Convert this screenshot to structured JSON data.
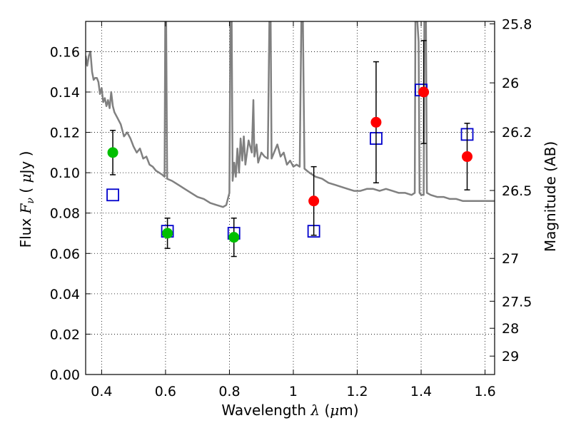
{
  "chart_data": {
    "type": "scatter",
    "title": "",
    "xlabel": {
      "prefix": "Wavelength  ",
      "symbol": "λ",
      "unit": " (",
      "mu": "μ",
      "unit_end": "m)"
    },
    "ylabel": {
      "prefix": "Flux  ",
      "symbol": "F",
      "sub": "ν",
      "unit_open": "  ( ",
      "mu": "μ",
      "unit_end": "Jy )"
    },
    "y2label": "Magnitude (AB)",
    "xlim": [
      0.35,
      1.63
    ],
    "ylim": [
      0.0,
      0.175
    ],
    "grid": true,
    "x_ticks": [
      {
        "v": 0.4,
        "label": "0.4"
      },
      {
        "v": 0.6,
        "label": "0.6"
      },
      {
        "v": 0.8,
        "label": "0.8"
      },
      {
        "v": 1.0,
        "label": "1"
      },
      {
        "v": 1.2,
        "label": "1.2"
      },
      {
        "v": 1.4,
        "label": "1.4"
      },
      {
        "v": 1.6,
        "label": "1.6"
      }
    ],
    "y_ticks": [
      {
        "v": 0.0,
        "label": "0.00"
      },
      {
        "v": 0.02,
        "label": "0.02"
      },
      {
        "v": 0.04,
        "label": "0.04"
      },
      {
        "v": 0.06,
        "label": "0.06"
      },
      {
        "v": 0.08,
        "label": "0.08"
      },
      {
        "v": 0.1,
        "label": "0.10"
      },
      {
        "v": 0.12,
        "label": "0.12"
      },
      {
        "v": 0.14,
        "label": "0.14"
      },
      {
        "v": 0.16,
        "label": "0.16"
      }
    ],
    "y2_ticks": [
      {
        "mag": 25.8,
        "label": "25.8"
      },
      {
        "mag": 26,
        "label": "26"
      },
      {
        "mag": 26.2,
        "label": "26.2"
      },
      {
        "mag": 26.5,
        "label": "26.5"
      },
      {
        "mag": 27,
        "label": "27"
      },
      {
        "mag": 27.5,
        "label": "27.5"
      },
      {
        "mag": 28,
        "label": "28"
      },
      {
        "mag": 29,
        "label": "29"
      }
    ],
    "series": [
      {
        "kind": "sed_model",
        "color": "#808080",
        "points": [
          [
            0.35,
            0.158
          ],
          [
            0.355,
            0.153
          ],
          [
            0.36,
            0.158
          ],
          [
            0.365,
            0.16
          ],
          [
            0.37,
            0.15
          ],
          [
            0.375,
            0.146
          ],
          [
            0.38,
            0.147
          ],
          [
            0.385,
            0.147
          ],
          [
            0.39,
            0.145
          ],
          [
            0.395,
            0.139
          ],
          [
            0.4,
            0.142
          ],
          [
            0.405,
            0.135
          ],
          [
            0.41,
            0.137
          ],
          [
            0.415,
            0.133
          ],
          [
            0.42,
            0.136
          ],
          [
            0.425,
            0.132
          ],
          [
            0.43,
            0.14
          ],
          [
            0.435,
            0.133
          ],
          [
            0.44,
            0.13
          ],
          [
            0.45,
            0.127
          ],
          [
            0.46,
            0.124
          ],
          [
            0.47,
            0.118
          ],
          [
            0.48,
            0.12
          ],
          [
            0.49,
            0.117
          ],
          [
            0.5,
            0.113
          ],
          [
            0.51,
            0.11
          ],
          [
            0.52,
            0.112
          ],
          [
            0.53,
            0.107
          ],
          [
            0.54,
            0.108
          ],
          [
            0.55,
            0.104
          ],
          [
            0.56,
            0.103
          ],
          [
            0.57,
            0.101
          ],
          [
            0.58,
            0.1
          ],
          [
            0.59,
            0.099
          ],
          [
            0.597,
            0.098
          ],
          [
            0.599,
            0.175
          ],
          [
            0.602,
            0.175
          ],
          [
            0.605,
            0.097
          ],
          [
            0.62,
            0.096
          ],
          [
            0.64,
            0.094
          ],
          [
            0.66,
            0.092
          ],
          [
            0.68,
            0.09
          ],
          [
            0.7,
            0.088
          ],
          [
            0.72,
            0.087
          ],
          [
            0.74,
            0.085
          ],
          [
            0.76,
            0.084
          ],
          [
            0.78,
            0.083
          ],
          [
            0.79,
            0.084
          ],
          [
            0.8,
            0.09
          ],
          [
            0.803,
            0.175
          ],
          [
            0.807,
            0.175
          ],
          [
            0.81,
            0.096
          ],
          [
            0.815,
            0.105
          ],
          [
            0.82,
            0.098
          ],
          [
            0.825,
            0.112
          ],
          [
            0.83,
            0.1
          ],
          [
            0.835,
            0.117
          ],
          [
            0.84,
            0.106
          ],
          [
            0.845,
            0.118
          ],
          [
            0.85,
            0.104
          ],
          [
            0.86,
            0.116
          ],
          [
            0.87,
            0.11
          ],
          [
            0.875,
            0.136
          ],
          [
            0.878,
            0.108
          ],
          [
            0.885,
            0.114
          ],
          [
            0.89,
            0.105
          ],
          [
            0.9,
            0.11
          ],
          [
            0.91,
            0.108
          ],
          [
            0.92,
            0.107
          ],
          [
            0.925,
            0.175
          ],
          [
            0.929,
            0.175
          ],
          [
            0.932,
            0.107
          ],
          [
            0.95,
            0.114
          ],
          [
            0.96,
            0.108
          ],
          [
            0.97,
            0.11
          ],
          [
            0.98,
            0.104
          ],
          [
            0.99,
            0.106
          ],
          [
            1.0,
            0.103
          ],
          [
            1.01,
            0.104
          ],
          [
            1.02,
            0.103
          ],
          [
            1.025,
            0.175
          ],
          [
            1.03,
            0.175
          ],
          [
            1.035,
            0.102
          ],
          [
            1.05,
            0.1
          ],
          [
            1.07,
            0.098
          ],
          [
            1.09,
            0.097
          ],
          [
            1.11,
            0.095
          ],
          [
            1.13,
            0.094
          ],
          [
            1.15,
            0.093
          ],
          [
            1.17,
            0.092
          ],
          [
            1.19,
            0.091
          ],
          [
            1.21,
            0.091
          ],
          [
            1.23,
            0.092
          ],
          [
            1.25,
            0.092
          ],
          [
            1.27,
            0.091
          ],
          [
            1.29,
            0.092
          ],
          [
            1.31,
            0.091
          ],
          [
            1.33,
            0.09
          ],
          [
            1.35,
            0.09
          ],
          [
            1.37,
            0.089
          ],
          [
            1.38,
            0.09
          ],
          [
            1.382,
            0.175
          ],
          [
            1.388,
            0.175
          ],
          [
            1.392,
            0.165
          ],
          [
            1.395,
            0.09
          ],
          [
            1.4,
            0.089
          ],
          [
            1.408,
            0.089
          ],
          [
            1.41,
            0.175
          ],
          [
            1.415,
            0.175
          ],
          [
            1.418,
            0.09
          ],
          [
            1.43,
            0.089
          ],
          [
            1.45,
            0.088
          ],
          [
            1.47,
            0.088
          ],
          [
            1.49,
            0.087
          ],
          [
            1.51,
            0.087
          ],
          [
            1.53,
            0.086
          ],
          [
            1.55,
            0.086
          ],
          [
            1.57,
            0.086
          ],
          [
            1.59,
            0.086
          ],
          [
            1.63,
            0.086
          ]
        ]
      },
      {
        "kind": "observed",
        "color": "#00bf00",
        "marker": "circle",
        "points": [
          {
            "x": 0.435,
            "y": 0.11,
            "err": 0.011
          },
          {
            "x": 0.606,
            "y": 0.07,
            "err": 0.0075
          },
          {
            "x": 0.814,
            "y": 0.068,
            "err": 0.0095
          }
        ]
      },
      {
        "kind": "observed",
        "color": "#ff0000",
        "marker": "circle",
        "points": [
          {
            "x": 1.064,
            "y": 0.086,
            "err": 0.017
          },
          {
            "x": 1.259,
            "y": 0.125,
            "err": 0.03
          },
          {
            "x": 1.408,
            "y": 0.14,
            "err": 0.0255
          },
          {
            "x": 1.544,
            "y": 0.108,
            "err": 0.0165
          }
        ]
      },
      {
        "kind": "model_photometry",
        "color": "#0000cc",
        "marker": "square",
        "points": [
          {
            "x": 0.435,
            "y": 0.089
          },
          {
            "x": 0.606,
            "y": 0.071
          },
          {
            "x": 0.814,
            "y": 0.07
          },
          {
            "x": 1.064,
            "y": 0.071
          },
          {
            "x": 1.259,
            "y": 0.117
          },
          {
            "x": 1.4,
            "y": 0.141
          },
          {
            "x": 1.544,
            "y": 0.119
          }
        ]
      }
    ]
  }
}
